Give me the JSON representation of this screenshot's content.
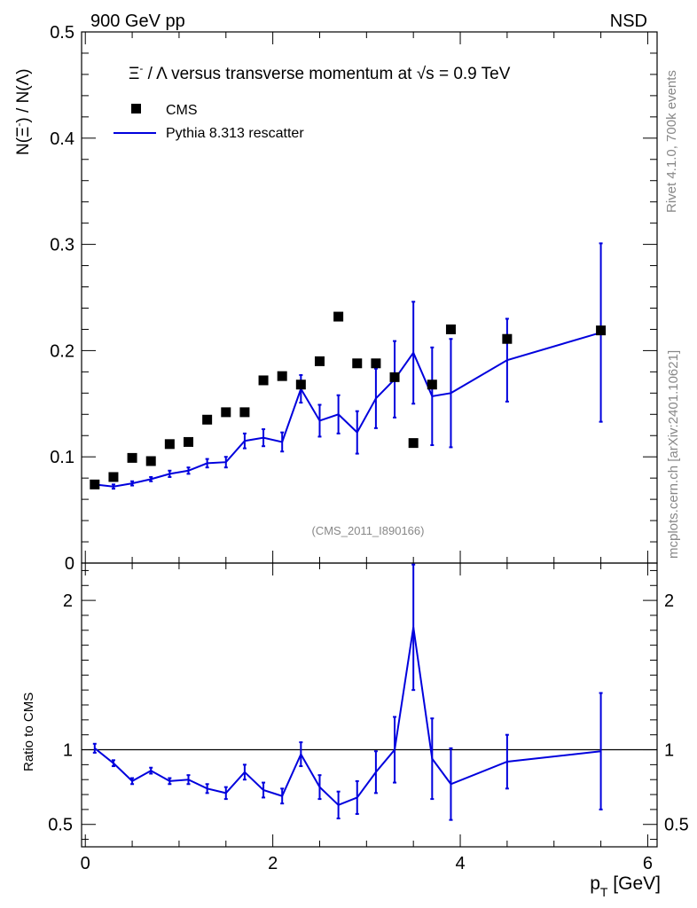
{
  "chart_data": {
    "type": "line",
    "header_left": "900 GeV pp",
    "header_right": "NSD",
    "title_parts": [
      "Ξ",
      "-",
      " / Λ versus transverse momentum at ",
      "√s",
      " = 0.9 TeV"
    ],
    "ylabel_parts": [
      "N(Ξ",
      "-",
      ")  /  N(Λ)"
    ],
    "xlabel_main": "p",
    "xlabel_sub": "T",
    "xlabel_unit": " [GeV]",
    "ratio_ylabel": "Ratio to CMS",
    "watermark": "(CMS_2011_I890166)",
    "side_text_top": "Rivet 4.1.0,  700k events",
    "side_text_bottom": "mcplots.cern.ch [arXiv:2401.10621]",
    "xlim": [
      -0.04,
      6.1
    ],
    "ylim": [
      0,
      0.5
    ],
    "ratio_ylim": [
      0.35,
      2.25
    ],
    "x_ticks": [
      {
        "value": 0,
        "label": "0"
      },
      {
        "value": 2,
        "label": "2"
      },
      {
        "value": 4,
        "label": "4"
      },
      {
        "value": 6,
        "label": "6"
      }
    ],
    "y_ticks": [
      {
        "value": 0,
        "label": "0"
      },
      {
        "value": 0.1,
        "label": "0.1"
      },
      {
        "value": 0.2,
        "label": "0.2"
      },
      {
        "value": 0.3,
        "label": "0.3"
      },
      {
        "value": 0.4,
        "label": "0.4"
      },
      {
        "value": 0.5,
        "label": "0.5"
      }
    ],
    "ratio_ticks": [
      {
        "value": 0.5,
        "label": "0.5"
      },
      {
        "value": 1,
        "label": "1"
      },
      {
        "value": 2,
        "label": "2"
      }
    ],
    "legend": [
      {
        "name": "CMS",
        "marker": "square",
        "color": "#000000"
      },
      {
        "name": "Pythia 8.313 rescatter",
        "marker": "line",
        "color": "#0000dd"
      }
    ],
    "series": [
      {
        "name": "CMS",
        "x": [
          0.1,
          0.3,
          0.5,
          0.7,
          0.9,
          1.1,
          1.3,
          1.5,
          1.7,
          1.9,
          2.1,
          2.3,
          2.5,
          2.7,
          2.9,
          3.1,
          3.3,
          3.5,
          3.7,
          3.9,
          4.5,
          5.5
        ],
        "y": [
          0.074,
          0.081,
          0.099,
          0.096,
          0.112,
          0.114,
          0.135,
          0.142,
          0.142,
          0.172,
          0.176,
          0.168,
          0.19,
          0.232,
          0.188,
          0.188,
          0.175,
          0.113,
          0.168,
          0.22,
          0.211,
          0.219
        ]
      },
      {
        "name": "Pythia 8.313 rescatter",
        "x": [
          0.1,
          0.3,
          0.5,
          0.7,
          0.9,
          1.1,
          1.3,
          1.5,
          1.7,
          1.9,
          2.1,
          2.3,
          2.5,
          2.7,
          2.9,
          3.1,
          3.3,
          3.5,
          3.7,
          3.9,
          4.5,
          5.5
        ],
        "y": [
          0.074,
          0.072,
          0.075,
          0.079,
          0.084,
          0.087,
          0.094,
          0.095,
          0.115,
          0.118,
          0.114,
          0.164,
          0.134,
          0.14,
          0.123,
          0.155,
          0.173,
          0.198,
          0.157,
          0.16,
          0.191,
          0.217
        ],
        "err": [
          0.002,
          0.002,
          0.002,
          0.002,
          0.003,
          0.003,
          0.004,
          0.005,
          0.007,
          0.008,
          0.009,
          0.013,
          0.015,
          0.018,
          0.02,
          0.028,
          0.036,
          0.048,
          0.046,
          0.051,
          0.039,
          0.084
        ]
      }
    ],
    "ratio": {
      "x": [
        0.1,
        0.3,
        0.5,
        0.7,
        0.9,
        1.1,
        1.3,
        1.5,
        1.7,
        1.9,
        2.1,
        2.3,
        2.5,
        2.7,
        2.9,
        3.1,
        3.3,
        3.5,
        3.7,
        3.9,
        4.5,
        5.5
      ],
      "y": [
        1.01,
        0.91,
        0.79,
        0.86,
        0.79,
        0.8,
        0.74,
        0.71,
        0.85,
        0.73,
        0.69,
        0.97,
        0.75,
        0.63,
        0.68,
        0.85,
        1.0,
        1.82,
        0.94,
        0.77,
        0.92,
        0.99
      ],
      "err": [
        0.03,
        0.02,
        0.02,
        0.02,
        0.02,
        0.03,
        0.03,
        0.04,
        0.05,
        0.05,
        0.05,
        0.08,
        0.08,
        0.09,
        0.11,
        0.14,
        0.22,
        0.42,
        0.27,
        0.24,
        0.18,
        0.39
      ]
    }
  }
}
